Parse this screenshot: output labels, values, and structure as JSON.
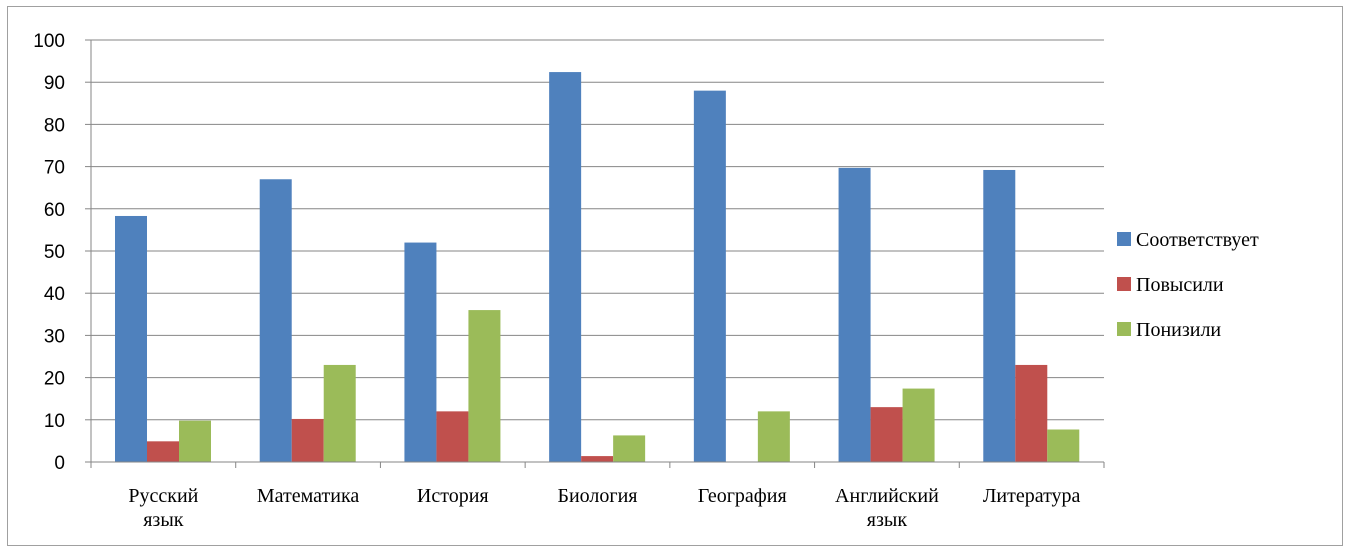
{
  "chart_data": {
    "type": "bar",
    "categories": [
      [
        "Русский",
        "язык"
      ],
      [
        "Математика"
      ],
      [
        "История"
      ],
      [
        "Биология"
      ],
      [
        "География"
      ],
      [
        "Английский",
        "язык"
      ],
      [
        "Литература"
      ]
    ],
    "series": [
      {
        "name": "Соответствует",
        "color": "#4F81BD",
        "values": [
          58.3,
          67,
          52,
          92.4,
          88,
          69.7,
          69.2
        ]
      },
      {
        "name": "Повысили",
        "color": "#C0504D",
        "values": [
          4.9,
          10.2,
          12,
          1.4,
          0,
          13,
          23
        ]
      },
      {
        "name": "Понизили",
        "color": "#9BBB59",
        "values": [
          9.8,
          23,
          36,
          6.3,
          12,
          17.4,
          7.7
        ]
      }
    ],
    "ylim": [
      0,
      100
    ],
    "yticks": [
      0,
      10,
      20,
      30,
      40,
      50,
      60,
      70,
      80,
      90,
      100
    ],
    "grid": true,
    "legend": "right",
    "title": "",
    "xlabel": "",
    "ylabel": ""
  }
}
